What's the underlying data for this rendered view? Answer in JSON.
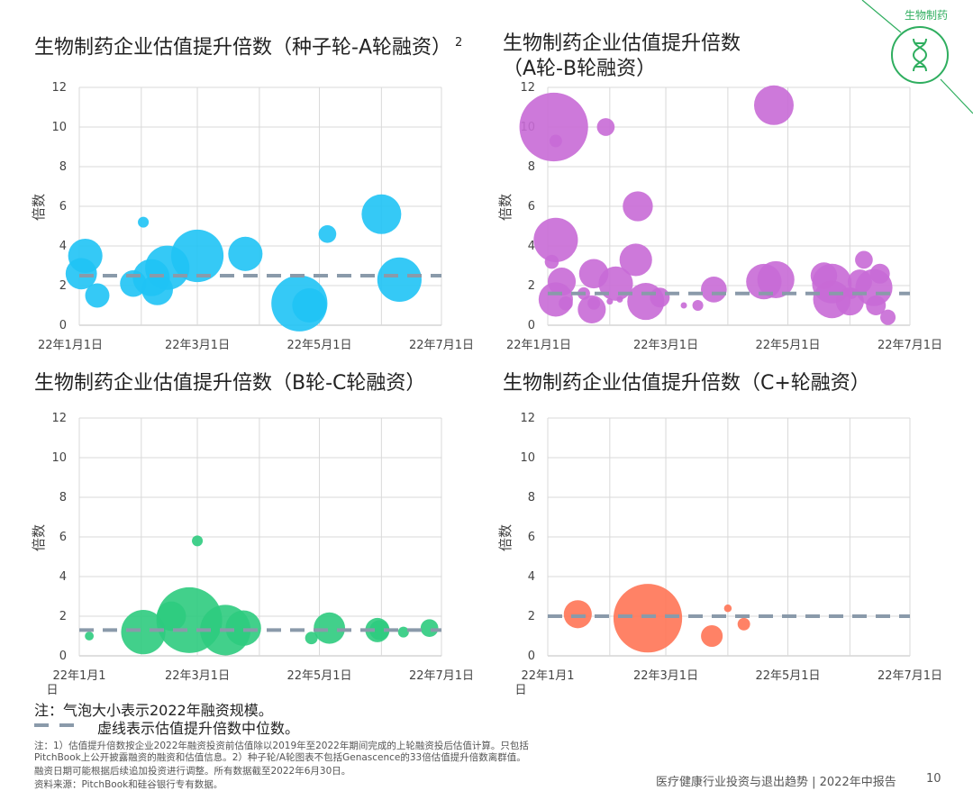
{
  "header": {
    "sector": "生物制药",
    "sup": "2"
  },
  "chart_data": [
    {
      "type": "scatter",
      "title": "生物制药企业估值提升倍数（种子轮-A轮融资）",
      "ylabel": "倍数",
      "xlabel": "",
      "x_ticks": [
        "22年1月1日",
        "22年3月1日",
        "22年5月1日",
        "22年7月1日"
      ],
      "y_ticks": [
        "0",
        "2",
        "4",
        "6",
        "8",
        "10",
        "12"
      ],
      "ylim": [
        0,
        12
      ],
      "xlim": [
        "2022-01-01",
        "2022-07-01"
      ],
      "color": "#1fc3f5",
      "median": 2.5,
      "points": [
        {
          "x": "2022-01-02",
          "y": 2.6,
          "size": 2.5
        },
        {
          "x": "2022-01-04",
          "y": 3.5,
          "size": 3
        },
        {
          "x": "2022-01-10",
          "y": 1.5,
          "size": 1.5
        },
        {
          "x": "2022-01-28",
          "y": 2.1,
          "size": 1.8
        },
        {
          "x": "2022-02-02",
          "y": 5.2,
          "size": 0.3
        },
        {
          "x": "2022-02-06",
          "y": 2.4,
          "size": 3.5
        },
        {
          "x": "2022-02-09",
          "y": 1.8,
          "size": 2.5
        },
        {
          "x": "2022-02-14",
          "y": 2.9,
          "size": 5
        },
        {
          "x": "2022-03-01",
          "y": 3.5,
          "size": 7
        },
        {
          "x": "2022-03-25",
          "y": 3.6,
          "size": 3
        },
        {
          "x": "2022-04-21",
          "y": 1.1,
          "size": 8
        },
        {
          "x": "2022-04-26",
          "y": 1.0,
          "size": 3
        },
        {
          "x": "2022-05-05",
          "y": 4.6,
          "size": 0.8
        },
        {
          "x": "2022-06-01",
          "y": 5.6,
          "size": 4
        },
        {
          "x": "2022-06-10",
          "y": 2.3,
          "size": 5
        }
      ]
    },
    {
      "type": "scatter",
      "title": "生物制药企业估值提升倍数\n（A轮-B轮融资）",
      "ylabel": "倍数",
      "xlabel": "",
      "x_ticks": [
        "22年1月1日",
        "22年3月1日",
        "22年5月1日",
        "22年7月1日"
      ],
      "y_ticks": [
        "0",
        "2",
        "4",
        "6",
        "8",
        "10",
        "12"
      ],
      "ylim": [
        0,
        12
      ],
      "xlim": [
        "2022-01-01",
        "2022-07-01"
      ],
      "color": "#c86ad6",
      "median": 1.6,
      "points": [
        {
          "x": "2022-01-04",
          "y": 10.0,
          "size": 12
        },
        {
          "x": "2022-01-05",
          "y": 9.3,
          "size": 0.4
        },
        {
          "x": "2022-01-05",
          "y": 4.3,
          "size": 5
        },
        {
          "x": "2022-01-03",
          "y": 3.2,
          "size": 0.5
        },
        {
          "x": "2022-01-08",
          "y": 2.2,
          "size": 2
        },
        {
          "x": "2022-01-05",
          "y": 1.3,
          "size": 3
        },
        {
          "x": "2022-01-10",
          "y": 1.1,
          "size": 0.5
        },
        {
          "x": "2022-01-19",
          "y": 1.6,
          "size": 0.4
        },
        {
          "x": "2022-01-24",
          "y": 2.6,
          "size": 2.2
        },
        {
          "x": "2022-01-23",
          "y": 0.8,
          "size": 2
        },
        {
          "x": "2022-01-24",
          "y": 1.1,
          "size": 0.4
        },
        {
          "x": "2022-01-30",
          "y": 10.0,
          "size": 0.8
        },
        {
          "x": "2022-02-01",
          "y": 1.2,
          "size": 0.1
        },
        {
          "x": "2022-02-04",
          "y": 2.1,
          "size": 3
        },
        {
          "x": "2022-02-06",
          "y": 1.3,
          "size": 0.1
        },
        {
          "x": "2022-02-14",
          "y": 3.3,
          "size": 2.7
        },
        {
          "x": "2022-02-15",
          "y": 6.0,
          "size": 2.3
        },
        {
          "x": "2022-02-19",
          "y": 1.2,
          "size": 3.5
        },
        {
          "x": "2022-02-26",
          "y": 1.4,
          "size": 1
        },
        {
          "x": "2022-03-10",
          "y": 1.0,
          "size": 0.05
        },
        {
          "x": "2022-03-17",
          "y": 1.0,
          "size": 0.3
        },
        {
          "x": "2022-03-25",
          "y": 1.8,
          "size": 1.7
        },
        {
          "x": "2022-04-19",
          "y": 2.2,
          "size": 3.2
        },
        {
          "x": "2022-04-24",
          "y": 11.1,
          "size": 4
        },
        {
          "x": "2022-04-25",
          "y": 2.3,
          "size": 3.5
        },
        {
          "x": "2022-05-19",
          "y": 2.5,
          "size": 1.8
        },
        {
          "x": "2022-05-23",
          "y": 2.1,
          "size": 4
        },
        {
          "x": "2022-05-23",
          "y": 1.3,
          "size": 3.6
        },
        {
          "x": "2022-06-01",
          "y": 1.2,
          "size": 2
        },
        {
          "x": "2022-06-02",
          "y": 1.6,
          "size": 0.3
        },
        {
          "x": "2022-06-06",
          "y": 2.2,
          "size": 1.5
        },
        {
          "x": "2022-06-08",
          "y": 3.3,
          "size": 0.8
        },
        {
          "x": "2022-06-13",
          "y": 1.9,
          "size": 3.5
        },
        {
          "x": "2022-06-14",
          "y": 1.0,
          "size": 1
        },
        {
          "x": "2022-06-16",
          "y": 2.6,
          "size": 1
        },
        {
          "x": "2022-06-20",
          "y": 0.4,
          "size": 0.6
        }
      ]
    },
    {
      "type": "scatter",
      "title": "生物制药企业估值提升倍数（B轮-C轮融资）",
      "ylabel": "倍数",
      "xlabel": "",
      "x_ticks": [
        "22年1月1\n日",
        "22年3月1日",
        "22年5月1日",
        "22年7月1日"
      ],
      "y_ticks": [
        "0",
        "2",
        "4",
        "6",
        "8",
        "10",
        "12"
      ],
      "ylim": [
        0,
        12
      ],
      "xlim": [
        "2022-01-01",
        "2022-07-01"
      ],
      "color": "#2ecb7e",
      "median": 1.3,
      "points": [
        {
          "x": "2022-01-06",
          "y": 1.0,
          "size": 0.2
        },
        {
          "x": "2022-02-02",
          "y": 1.2,
          "size": 5
        },
        {
          "x": "2022-02-16",
          "y": 2.0,
          "size": 2.2
        },
        {
          "x": "2022-02-25",
          "y": 1.8,
          "size": 11
        },
        {
          "x": "2022-03-01",
          "y": 5.8,
          "size": 0.3
        },
        {
          "x": "2022-03-15",
          "y": 1.3,
          "size": 6.5
        },
        {
          "x": "2022-03-24",
          "y": 1.4,
          "size": 3.2
        },
        {
          "x": "2022-04-27",
          "y": 0.9,
          "size": 0.4
        },
        {
          "x": "2022-05-06",
          "y": 1.4,
          "size": 2.5
        },
        {
          "x": "2022-05-30",
          "y": 1.3,
          "size": 1.5
        },
        {
          "x": "2022-05-31",
          "y": 1.3,
          "size": 1
        },
        {
          "x": "2022-06-12",
          "y": 1.2,
          "size": 0.3
        },
        {
          "x": "2022-06-25",
          "y": 1.4,
          "size": 0.8
        }
      ]
    },
    {
      "type": "scatter",
      "title": "生物制药企业估值提升倍数（C+轮融资）",
      "ylabel": "倍数",
      "xlabel": "",
      "x_ticks": [
        "22年1月1\n日",
        "22年3月1日",
        "22年5月1日",
        "22年7月1日"
      ],
      "y_ticks": [
        "0",
        "2",
        "4",
        "6",
        "8",
        "10",
        "12"
      ],
      "ylim": [
        0,
        12
      ],
      "xlim": [
        "2022-01-01",
        "2022-07-01"
      ],
      "color": "#ff7455",
      "median": 2.0,
      "points": [
        {
          "x": "2022-01-16",
          "y": 2.1,
          "size": 2
        },
        {
          "x": "2022-02-20",
          "y": 1.9,
          "size": 12
        },
        {
          "x": "2022-03-24",
          "y": 1.0,
          "size": 1.2
        },
        {
          "x": "2022-04-01",
          "y": 2.4,
          "size": 0.15
        },
        {
          "x": "2022-04-09",
          "y": 1.6,
          "size": 0.4
        }
      ]
    }
  ],
  "notes": {
    "bubble": "注：气泡大小表示2022年融资规模。",
    "median": "虚线表示估值提升倍数中位数。",
    "fine_1": "注：1）估值提升倍数按企业2022年融资投资前估值除以2019年至2022年期间完成的上轮融资投后估值计算。只包括",
    "fine_2": "PitchBook上公开披露融资的融资和估值信息。2）种子轮/A轮图表不包括Genascence的33倍估值提升倍数离群值。",
    "fine_3": "融资日期可能根据后续追加投资进行调整。所有数据截至2022年6月30日。",
    "source": "资料来源：PitchBook和硅谷银行专有数据。"
  },
  "footer": {
    "report": "医疗健康行业投资与退出趋势 | 2022年中报告",
    "page": "10"
  },
  "colors": {
    "accent": "#2fae5f",
    "median_line": "#8a9aaa",
    "grid": "#d9d9d9"
  }
}
